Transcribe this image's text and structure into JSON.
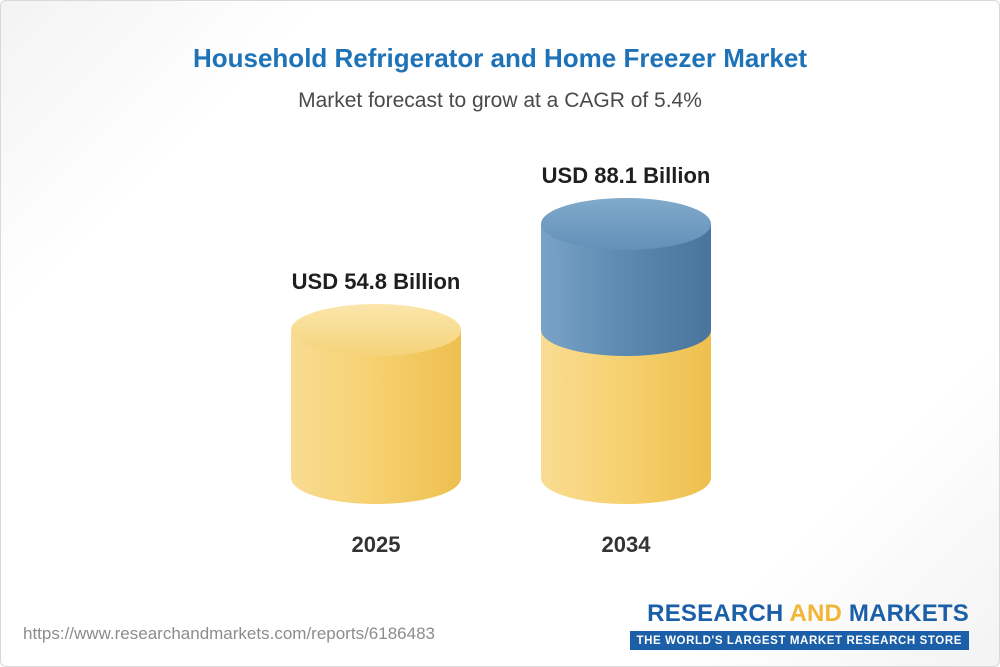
{
  "header": {
    "title": "Household Refrigerator and Home Freezer Market",
    "subtitle": "Market forecast to grow at a CAGR of 5.4%"
  },
  "chart_data": {
    "type": "bar",
    "subtype": "3d-cylinder",
    "title": "Household Refrigerator and Home Freezer Market",
    "subtitle": "Market forecast to grow at a CAGR of 5.4%",
    "cagr_percent": 5.4,
    "unit": "USD Billion",
    "categories": [
      "2025",
      "2034"
    ],
    "values": [
      54.8,
      88.1
    ],
    "ylim": [
      0,
      88.1
    ],
    "grid": false,
    "legend": "none",
    "bars": [
      {
        "category": "2025",
        "value": 54.8,
        "label": "USD 54.8 Billion",
        "color": "#f7d272"
      },
      {
        "category": "2034",
        "value": 88.1,
        "label": "USD 88.1 Billion",
        "base_color": "#f7d272",
        "growth_color": "#5e8bb3"
      }
    ],
    "colors": {
      "yellow": "#f7d272",
      "blue": "#5e8bb3",
      "title_blue": "#1e73b8"
    }
  },
  "footer": {
    "url": "https://www.researchandmarkets.com/reports/6186483",
    "logo": {
      "part1": "RESEARCH",
      "part2": "AND",
      "part3": "MARKETS",
      "tagline": "THE WORLD'S LARGEST MARKET RESEARCH STORE"
    }
  }
}
